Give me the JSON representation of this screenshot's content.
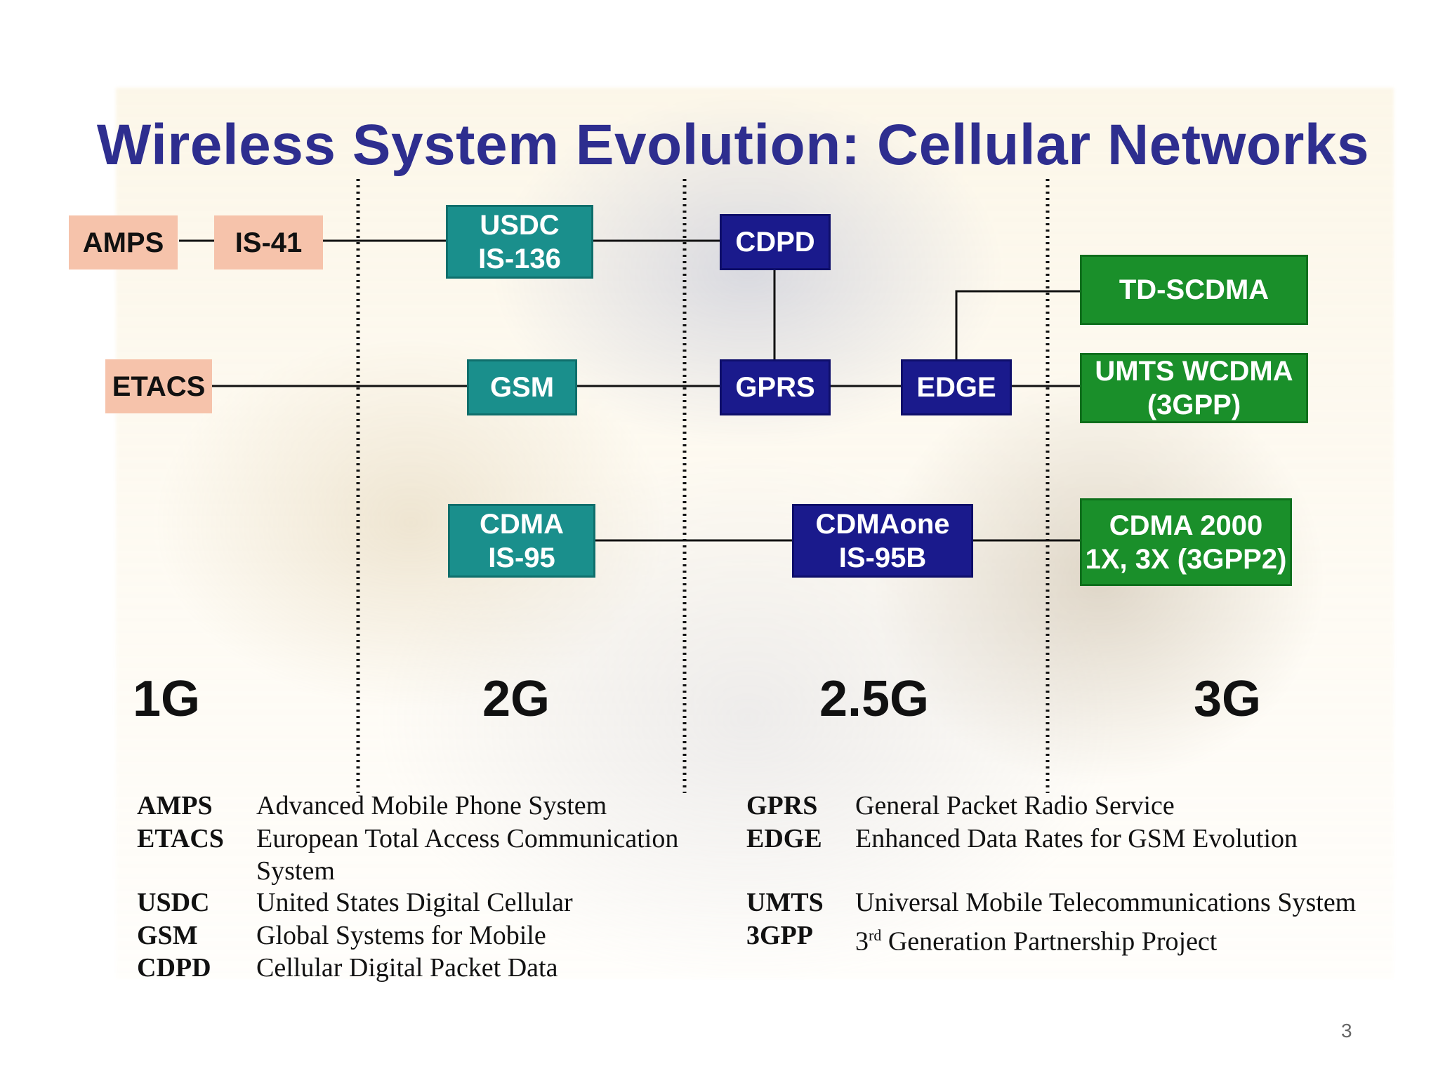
{
  "title": "Wireless System Evolution: Cellular Networks",
  "nodes": {
    "amps": "AMPS",
    "is41": "IS-41",
    "etacs": "ETACS",
    "usdc": "USDC\nIS-136",
    "gsm": "GSM",
    "cdma": "CDMA\nIS-95",
    "cdpd": "CDPD",
    "gprs": "GPRS",
    "edge": "EDGE",
    "cdmaone": "CDMAone\nIS-95B",
    "tdscdma": "TD-SCDMA",
    "umts": "UMTS WCDMA\n(3GPP)",
    "cdma2000": "CDMA 2000\n1X, 3X (3GPP2)"
  },
  "generations": [
    "1G",
    "2G",
    "2.5G",
    "3G"
  ],
  "glossary_left": [
    {
      "abbr": "AMPS",
      "def": "Advanced Mobile Phone System"
    },
    {
      "abbr": "ETACS",
      "def": "European Total Access Communication\nSystem"
    },
    {
      "abbr": "USDC",
      "def": "United States Digital Cellular"
    },
    {
      "abbr": "GSM",
      "def": "Global Systems for Mobile"
    },
    {
      "abbr": "CDPD",
      "def": "Cellular Digital Packet Data"
    }
  ],
  "glossary_right": [
    {
      "abbr": "GPRS",
      "def": "General Packet Radio Service"
    },
    {
      "abbr": "EDGE",
      "def": "Enhanced Data Rates for GSM Evolution"
    },
    {
      "abbr": "UMTS",
      "def": "Universal Mobile Telecommunications System"
    },
    {
      "abbr": "3GPP",
      "def_prefix": "3",
      "def_sup": "rd",
      "def": " Generation Partnership Project"
    }
  ],
  "page_number": "3",
  "colors": {
    "title": "#2e2e8f",
    "first_gen": "#f6c3ab",
    "second_gen": "#1a8f8c",
    "transitional": "#1a1a8c",
    "third_gen": "#1a8f2a"
  }
}
